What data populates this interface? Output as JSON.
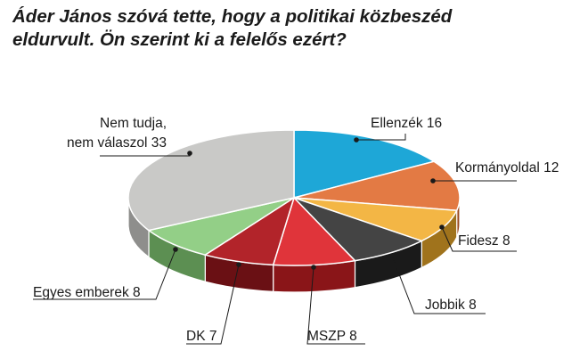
{
  "title": {
    "line1": "Áder János szóvá tette, hogy a politikai közbeszéd",
    "line2": "eldurvult. Ön szerint ki a felelős ezért?"
  },
  "chart_data": {
    "type": "pie",
    "slices": [
      {
        "name": "Ellenzék",
        "value": 16,
        "color": "#1ea7d7",
        "side": "#137090",
        "label_lines": [
          "Ellenzék 16"
        ]
      },
      {
        "name": "Kormányoldal",
        "value": 12,
        "color": "#e37a44",
        "side": "#9a4a1e",
        "label_lines": [
          "Kormányoldal 12"
        ]
      },
      {
        "name": "Fidesz",
        "value": 8,
        "color": "#f3b645",
        "side": "#a0731c",
        "label_lines": [
          "Fidesz 8"
        ]
      },
      {
        "name": "Jobbik",
        "value": 8,
        "color": "#444444",
        "side": "#1a1a1a",
        "label_lines": [
          "Jobbik 8"
        ]
      },
      {
        "name": "MSZP",
        "value": 8,
        "color": "#e0343a",
        "side": "#8a1518",
        "label_lines": [
          "MSZP 8"
        ]
      },
      {
        "name": "DK",
        "value": 7,
        "color": "#b2242a",
        "side": "#6a1014",
        "label_lines": [
          "DK 7"
        ]
      },
      {
        "name": "Egyes emberek",
        "value": 8,
        "color": "#93cf87",
        "side": "#5c8f52",
        "label_lines": [
          "Egyes emberek 8"
        ]
      },
      {
        "name": "Nem tudja, nem válaszol",
        "value": 33,
        "color": "#c9c9c7",
        "side": "#8e8e8c",
        "label_lines": [
          "Nem tudja,",
          "nem válaszol 33"
        ]
      }
    ]
  }
}
